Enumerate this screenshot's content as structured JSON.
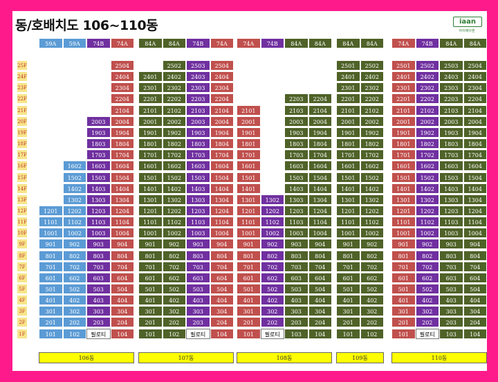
{
  "title": "동/호배치도 106~110동",
  "logo": {
    "text": "iaan",
    "sub": "아이에이엔"
  },
  "colors": {
    "59A": "#5b9bd5",
    "74A": "#c0504d",
    "74B": "#7030a0",
    "84A": "#4f6228"
  },
  "pilotis_label": "필로티",
  "floors": [
    "25F",
    "24F",
    "23F",
    "22F",
    "21F",
    "20F",
    "19F",
    "18F",
    "17F",
    "16F",
    "15F",
    "14F",
    "13F",
    "12F",
    "11F",
    "10F",
    "9F",
    "8F",
    "7F",
    "6F",
    "5F",
    "4F",
    "3F",
    "2F",
    "1F"
  ],
  "buildings": [
    {
      "label": "106동",
      "columns": [
        {
          "type": "59A",
          "line": "01",
          "top": 12,
          "pilotis": false
        },
        {
          "type": "59A",
          "line": "02",
          "top": 16,
          "pilotis": false
        },
        {
          "type": "74B",
          "line": "03",
          "top": 20,
          "pilotis": true
        },
        {
          "type": "74A",
          "line": "04",
          "top": 25,
          "pilotis": false
        }
      ]
    },
    {
      "label": "107동",
      "columns": [
        {
          "type": "84A",
          "line": "01",
          "top": 24,
          "pilotis": false
        },
        {
          "type": "84A",
          "line": "02",
          "top": 25,
          "pilotis": false
        },
        {
          "type": "74B",
          "line": "03",
          "top": 25,
          "pilotis": true
        },
        {
          "type": "74A",
          "line": "04",
          "top": 25,
          "pilotis": false
        }
      ]
    },
    {
      "label": "108동",
      "columns": [
        {
          "type": "74A",
          "line": "01",
          "top": 21,
          "pilotis": false
        },
        {
          "type": "74B",
          "line": "02",
          "top": 13,
          "pilotis": true
        },
        {
          "type": "84A",
          "line": "03",
          "top": 22,
          "pilotis": false
        },
        {
          "type": "84A",
          "line": "04",
          "top": 22,
          "pilotis": false
        }
      ]
    },
    {
      "label": "109동",
      "columns": [
        {
          "type": "84A",
          "line": "01",
          "top": 25,
          "pilotis": false
        },
        {
          "type": "84A",
          "line": "02",
          "top": 25,
          "pilotis": false
        }
      ]
    },
    {
      "label": "110동",
      "columns": [
        {
          "type": "74A",
          "line": "01",
          "top": 25,
          "pilotis": false
        },
        {
          "type": "74B",
          "line": "02",
          "top": 25,
          "pilotis": true
        },
        {
          "type": "84A",
          "line": "03",
          "top": 25,
          "pilotis": false
        },
        {
          "type": "84A",
          "line": "04",
          "top": 25,
          "pilotis": false
        }
      ]
    }
  ]
}
